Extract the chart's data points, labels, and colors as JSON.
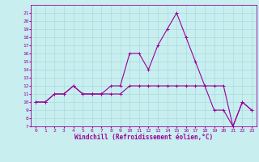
{
  "xlabel": "Windchill (Refroidissement éolien,°C)",
  "x": [
    0,
    1,
    2,
    3,
    4,
    5,
    6,
    7,
    8,
    9,
    10,
    11,
    12,
    13,
    14,
    15,
    16,
    17,
    18,
    19,
    20,
    21,
    22,
    23
  ],
  "temp": [
    10,
    10,
    11,
    11,
    12,
    11,
    11,
    11,
    12,
    12,
    16,
    16,
    14,
    17,
    19,
    21,
    18,
    15,
    12,
    12,
    12,
    7,
    10,
    9
  ],
  "windchill": [
    10,
    10,
    11,
    11,
    12,
    11,
    11,
    11,
    11,
    11,
    12,
    12,
    12,
    12,
    12,
    12,
    12,
    12,
    12,
    9,
    9,
    7,
    10,
    9
  ],
  "line_color": "#990099",
  "bg_color": "#c8eef0",
  "grid_color": "#a0d8d8",
  "ylim": [
    7,
    22
  ],
  "xlim": [
    -0.5,
    23.5
  ],
  "yticks": [
    7,
    8,
    9,
    10,
    11,
    12,
    13,
    14,
    15,
    16,
    17,
    18,
    19,
    20,
    21
  ],
  "xticks": [
    0,
    1,
    2,
    3,
    4,
    5,
    6,
    7,
    8,
    9,
    10,
    11,
    12,
    13,
    14,
    15,
    16,
    17,
    18,
    19,
    20,
    21,
    22,
    23
  ],
  "marker": "+",
  "markersize": 3,
  "linewidth": 0.8,
  "tick_fontsize": 4.5,
  "label_fontsize": 5.5
}
